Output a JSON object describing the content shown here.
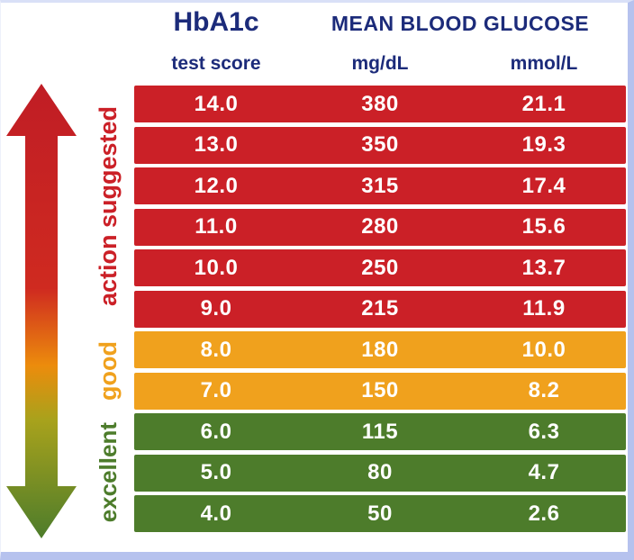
{
  "title": {
    "hba1c": "HbA1c",
    "mean_blood_glucose": "MEAN BLOOD GLUCOSE"
  },
  "columns": {
    "test_score": "test score",
    "mgdl": "mg/dL",
    "mmol": "mmol/L"
  },
  "colors": {
    "red": "#cb2027",
    "orange": "#f0a11d",
    "green": "#4d7c2b",
    "header_text": "#1c2b7a",
    "row_text": "#ffffff",
    "frame": "#b6c2ee"
  },
  "categories": [
    {
      "label": "action suggested",
      "color_key": "red"
    },
    {
      "label": "good",
      "color_key": "orange"
    },
    {
      "label": "excellent",
      "color_key": "green"
    }
  ],
  "arrow": {
    "description": "double-headed vertical gradient arrow, red at top to green at bottom",
    "gradient": [
      "#c01d25",
      "#cf2a20",
      "#ec8c0c",
      "#a8a21c",
      "#4d7c2b"
    ]
  },
  "chart_data": {
    "type": "table",
    "title": "HbA1c test score vs Mean Blood Glucose",
    "columns": [
      "HbA1c test score",
      "Mean blood glucose mg/dL",
      "Mean blood glucose mmol/L"
    ],
    "rows": [
      {
        "test_score": "14.0",
        "mgdl": "380",
        "mmol": "21.1",
        "zone": "action suggested",
        "color_key": "red"
      },
      {
        "test_score": "13.0",
        "mgdl": "350",
        "mmol": "19.3",
        "zone": "action suggested",
        "color_key": "red"
      },
      {
        "test_score": "12.0",
        "mgdl": "315",
        "mmol": "17.4",
        "zone": "action suggested",
        "color_key": "red"
      },
      {
        "test_score": "11.0",
        "mgdl": "280",
        "mmol": "15.6",
        "zone": "action suggested",
        "color_key": "red"
      },
      {
        "test_score": "10.0",
        "mgdl": "250",
        "mmol": "13.7",
        "zone": "action suggested",
        "color_key": "red"
      },
      {
        "test_score": "9.0",
        "mgdl": "215",
        "mmol": "11.9",
        "zone": "action suggested",
        "color_key": "red"
      },
      {
        "test_score": "8.0",
        "mgdl": "180",
        "mmol": "10.0",
        "zone": "good",
        "color_key": "orange"
      },
      {
        "test_score": "7.0",
        "mgdl": "150",
        "mmol": "8.2",
        "zone": "good",
        "color_key": "orange"
      },
      {
        "test_score": "6.0",
        "mgdl": "115",
        "mmol": "6.3",
        "zone": "excellent",
        "color_key": "green"
      },
      {
        "test_score": "5.0",
        "mgdl": "80",
        "mmol": "4.7",
        "zone": "excellent",
        "color_key": "green"
      },
      {
        "test_score": "4.0",
        "mgdl": "50",
        "mmol": "2.6",
        "zone": "excellent",
        "color_key": "green"
      }
    ]
  }
}
